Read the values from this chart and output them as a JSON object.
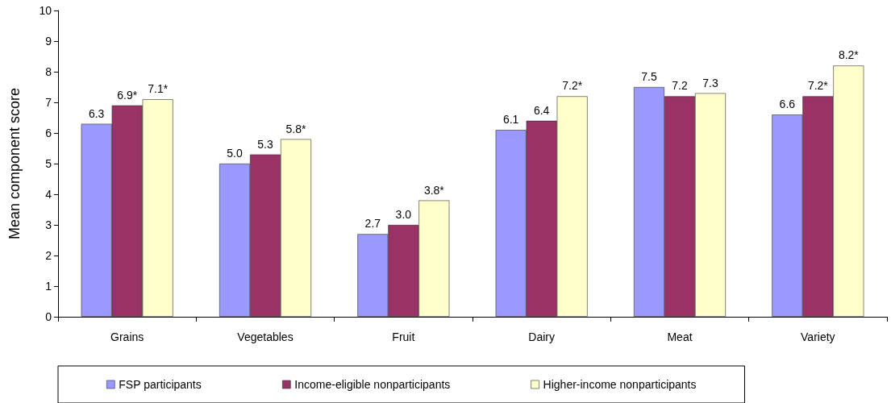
{
  "chart_data": {
    "type": "bar",
    "ylabel": "Mean component score",
    "categories": [
      "Grains",
      "Vegetables",
      "Fruit",
      "Dairy",
      "Meat",
      "Variety"
    ],
    "series": [
      {
        "name": "FSP participants",
        "color": "#9999ff",
        "values": [
          6.3,
          5.0,
          2.7,
          6.1,
          7.5,
          6.6
        ],
        "value_labels": [
          "6.3",
          "5.0",
          "2.7",
          "6.1",
          "7.5",
          "6.6"
        ]
      },
      {
        "name": "Income-eligible nonparticipants",
        "color": "#993366",
        "values": [
          6.9,
          5.3,
          3.0,
          6.4,
          7.2,
          7.2
        ],
        "value_labels": [
          "6.9*",
          "5.3",
          "3.0",
          "6.4",
          "7.2",
          "7.2*"
        ]
      },
      {
        "name": "Higher-income nonparticipants",
        "color": "#ffffcc",
        "values": [
          7.1,
          5.8,
          3.8,
          7.2,
          7.3,
          8.2
        ],
        "value_labels": [
          "7.1*",
          "5.8*",
          "3.8*",
          "7.2*",
          "7.3",
          "8.2*"
        ]
      }
    ],
    "ylim": [
      0,
      10
    ],
    "yticks": [
      0,
      1,
      2,
      3,
      4,
      5,
      6,
      7,
      8,
      9,
      10
    ],
    "grid": false,
    "legend": "bottom"
  }
}
